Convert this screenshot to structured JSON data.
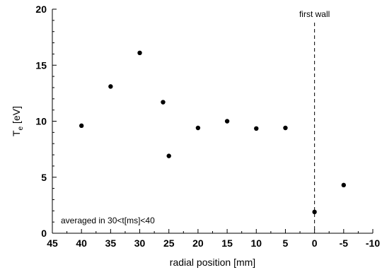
{
  "chart_data": {
    "type": "scatter",
    "xlabel": "radial position [mm]",
    "ylabel_main": "T",
    "ylabel_sub": "e",
    "ylabel_unit": " [eV]",
    "xlim": [
      45,
      -10
    ],
    "ylim": [
      0,
      20
    ],
    "x_ticks": [
      45,
      40,
      35,
      30,
      25,
      20,
      15,
      10,
      5,
      0,
      -5,
      -10
    ],
    "x_tick_labels": [
      "45",
      "40",
      "35",
      "30",
      "25",
      "20",
      "15",
      "10",
      "5",
      "0",
      "-5",
      "-10"
    ],
    "y_ticks": [
      0,
      5,
      10,
      15,
      20
    ],
    "y_tick_labels": [
      "0",
      "5",
      "10",
      "15",
      "20"
    ],
    "grid": false,
    "series": [
      {
        "x": [
          40,
          35,
          30,
          26,
          25,
          20,
          15,
          10,
          5,
          0,
          -5
        ],
        "y": [
          9.6,
          13.1,
          16.1,
          11.7,
          6.9,
          9.4,
          10.0,
          9.35,
          9.4,
          1.9,
          4.3
        ],
        "marker": "circle",
        "color": "#000000"
      }
    ],
    "reference_line": {
      "x": 0,
      "style": "dashed",
      "label": "first wall"
    },
    "annotation": "averaged in 30<t[ms]<40"
  }
}
